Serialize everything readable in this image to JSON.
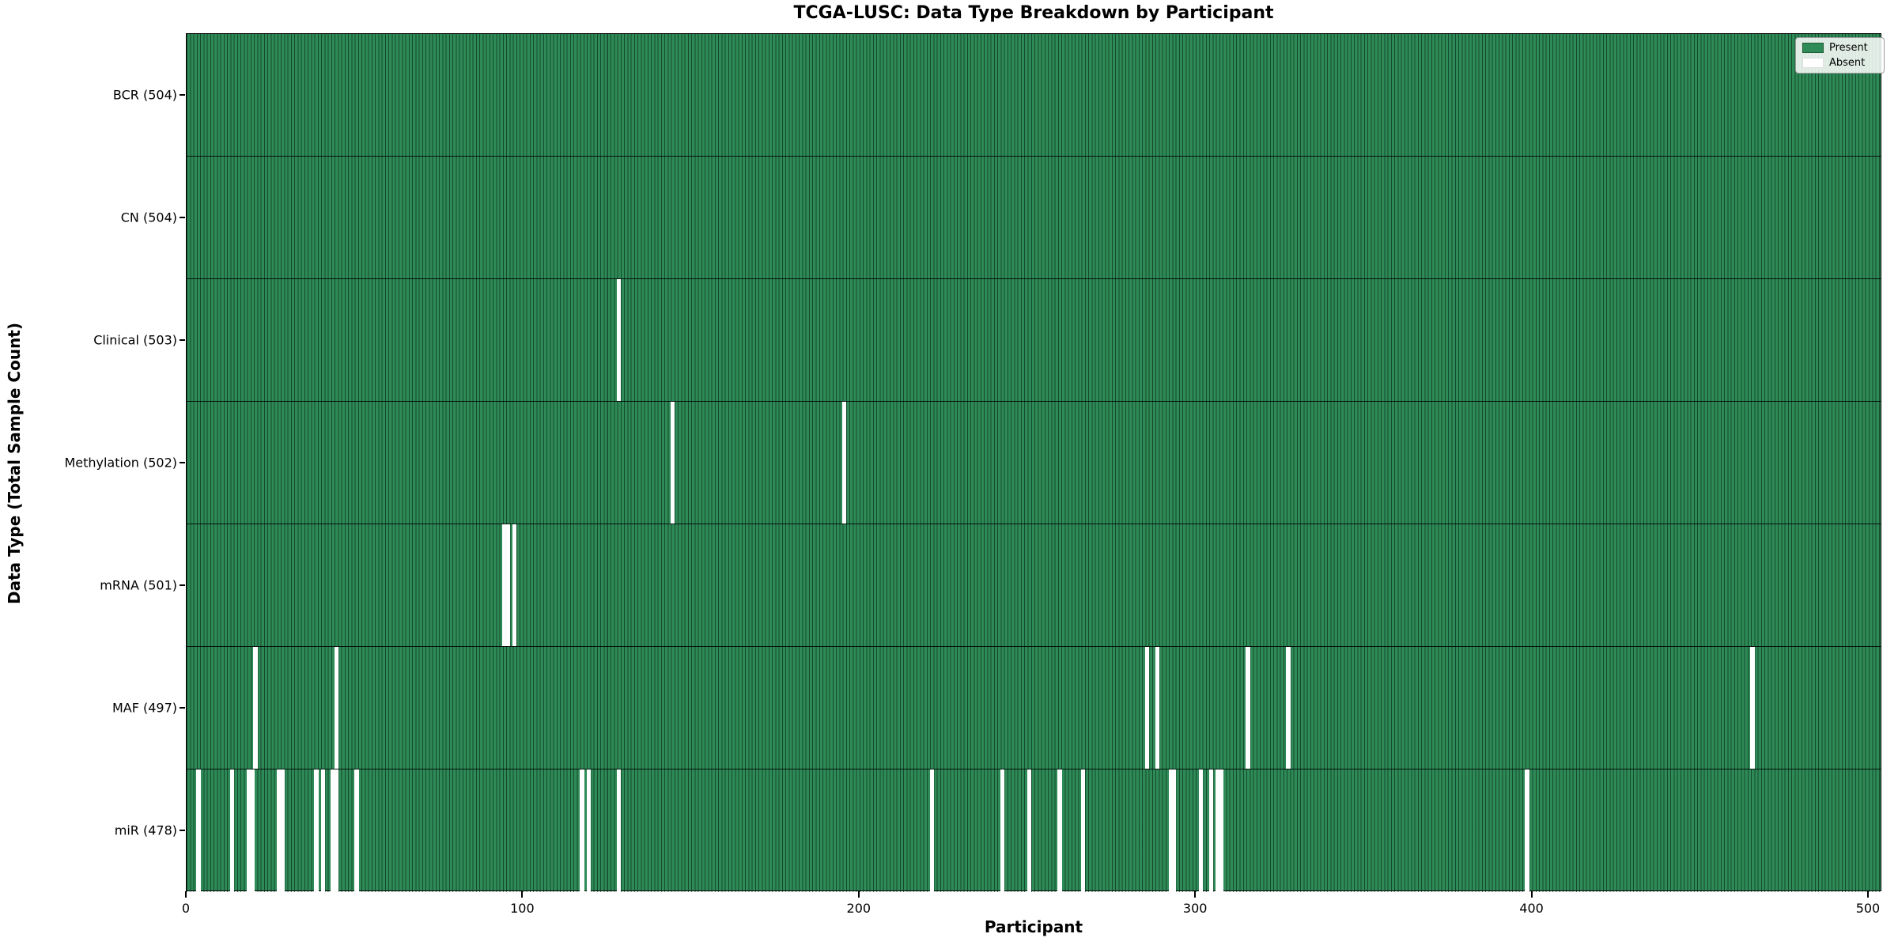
{
  "figure": {
    "title": "TCGA-LUSC: Data Type Breakdown by Participant",
    "xlabel": "Participant",
    "ylabel": "Data Type (Total Sample Count)"
  },
  "legend": {
    "items": [
      {
        "label": "Present",
        "color": "#2e8b57"
      },
      {
        "label": "Absent",
        "color": "#ffffff"
      }
    ]
  },
  "colors": {
    "present": "#2e8b57",
    "absent": "#ffffff",
    "bar_edge": "rgba(8,38,24,0.65)",
    "axis": "#000000"
  },
  "chart_data": {
    "type": "heatmap",
    "title": "TCGA-LUSC: Data Type Breakdown by Participant",
    "xlabel": "Participant",
    "ylabel": "Data Type (Total Sample Count)",
    "x_range": [
      0,
      504
    ],
    "n_participants": 504,
    "x_ticks": [
      0,
      100,
      200,
      300,
      400,
      500
    ],
    "legend_entries": [
      "Present",
      "Absent"
    ],
    "legend_position": "upper right",
    "grid": false,
    "rows": [
      {
        "label": "BCR (504)",
        "data_type": "BCR",
        "total": 504,
        "absent_participants": []
      },
      {
        "label": "CN (504)",
        "data_type": "CN",
        "total": 504,
        "absent_participants": []
      },
      {
        "label": "Clinical (503)",
        "data_type": "Clinical",
        "total": 503,
        "absent_participants": [
          128
        ]
      },
      {
        "label": "Methylation (502)",
        "data_type": "Methylation",
        "total": 502,
        "absent_participants": [
          144,
          195
        ]
      },
      {
        "label": "mRNA (501)",
        "data_type": "mRNA",
        "total": 501,
        "absent_participants": [
          94,
          95,
          97
        ]
      },
      {
        "label": "MAF (497)",
        "data_type": "MAF",
        "total": 497,
        "absent_participants": [
          20,
          44,
          285,
          288,
          315,
          327,
          465
        ]
      },
      {
        "label": "miR (478)",
        "data_type": "miR",
        "total": 478,
        "absent_participants": [
          3,
          13,
          18,
          19,
          27,
          28,
          38,
          40,
          43,
          44,
          50,
          117,
          119,
          128,
          221,
          242,
          250,
          259,
          266,
          292,
          293,
          301,
          304,
          306,
          307,
          398
        ]
      }
    ]
  }
}
